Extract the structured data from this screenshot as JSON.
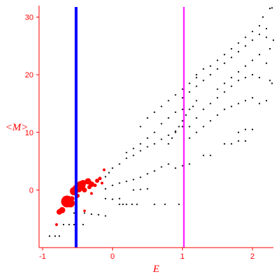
{
  "chart_data": {
    "type": "scatter",
    "title": "",
    "xlabel": "E",
    "ylabel": "<M>",
    "xlim": [
      -1.05,
      2.3
    ],
    "ylim": [
      -10,
      32
    ],
    "xticks": [
      -1,
      0,
      1,
      2
    ],
    "yticks": [
      0,
      10,
      20,
      30
    ],
    "axis_color": "#ff0000",
    "grid": false,
    "reference_lines": [
      {
        "name": "",
        "x": -0.52,
        "color": "#0000ff",
        "thickness": "thick"
      },
      {
        "name": "",
        "x": 1.02,
        "color": "#ff00ff",
        "thickness": "thin"
      }
    ],
    "series": [
      {
        "name": "",
        "color": "#000000",
        "marker": "small-dot",
        "points": [
          [
            -0.9,
            -8
          ],
          [
            -0.82,
            -8
          ],
          [
            -0.76,
            -8
          ],
          [
            -0.7,
            -6
          ],
          [
            -0.62,
            -6
          ],
          [
            -0.55,
            -6
          ],
          [
            -0.42,
            -6
          ],
          [
            -0.55,
            -4
          ],
          [
            -0.4,
            -4
          ],
          [
            -0.3,
            -4.2
          ],
          [
            -0.2,
            -4.3
          ],
          [
            -0.1,
            -4.5
          ],
          [
            -0.1,
            -1.5
          ],
          [
            0.0,
            -1.6
          ],
          [
            0.1,
            -1.5
          ],
          [
            0.1,
            -2.5
          ],
          [
            0.15,
            -2.5
          ],
          [
            0.2,
            -2.5
          ],
          [
            0.28,
            -2.5
          ],
          [
            0.35,
            -2.5
          ],
          [
            0.3,
            0
          ],
          [
            0.4,
            0.1
          ],
          [
            0.5,
            0.2
          ],
          [
            0.6,
            -2.5
          ],
          [
            0.75,
            -2.5
          ],
          [
            0.95,
            -2.5
          ],
          [
            -0.1,
            0.2
          ],
          [
            0.0,
            0.8
          ],
          [
            0.1,
            1.2
          ],
          [
            0.2,
            1.5
          ],
          [
            0.3,
            1.8
          ],
          [
            0.4,
            2.2
          ],
          [
            0.5,
            2.8
          ],
          [
            0.6,
            3.3
          ],
          [
            0.7,
            4.0
          ],
          [
            0.8,
            4.5
          ],
          [
            0.9,
            3.8
          ],
          [
            1.0,
            4.2
          ],
          [
            1.1,
            4.5
          ],
          [
            -0.1,
            2.3
          ],
          [
            -0.05,
            3.0
          ],
          [
            0.0,
            3.8
          ],
          [
            0.1,
            4.5
          ],
          [
            0.2,
            5.5
          ],
          [
            0.3,
            6.0
          ],
          [
            0.4,
            6.8
          ],
          [
            0.5,
            7.5
          ],
          [
            0.6,
            8.0
          ],
          [
            0.7,
            8.8
          ],
          [
            0.8,
            9.5
          ],
          [
            0.9,
            10.2
          ],
          [
            1.0,
            11.0
          ],
          [
            0.2,
            6.5
          ],
          [
            0.3,
            7.2
          ],
          [
            0.4,
            8.0
          ],
          [
            0.5,
            9.0
          ],
          [
            0.6,
            10.0
          ],
          [
            0.7,
            11.5
          ],
          [
            0.8,
            12.5
          ],
          [
            0.9,
            13.5
          ],
          [
            1.0,
            14.0
          ],
          [
            0.4,
            11.0
          ],
          [
            0.5,
            12.5
          ],
          [
            0.6,
            13.5
          ],
          [
            0.7,
            14.5
          ],
          [
            0.8,
            15.5
          ],
          [
            0.9,
            16.5
          ],
          [
            1.0,
            17.5
          ],
          [
            1.1,
            18.5
          ],
          [
            1.2,
            19.5
          ],
          [
            0.8,
            8.0
          ],
          [
            0.85,
            9.0
          ],
          [
            0.9,
            10.0
          ],
          [
            0.95,
            11.0
          ],
          [
            1.0,
            12.0
          ],
          [
            1.05,
            13.0
          ],
          [
            1.1,
            14.0
          ],
          [
            1.15,
            14.5
          ],
          [
            1.2,
            15.5
          ],
          [
            1.1,
            9.0
          ],
          [
            1.2,
            10.0
          ],
          [
            1.3,
            11.0
          ],
          [
            1.4,
            12.0
          ],
          [
            1.5,
            13.0
          ],
          [
            1.6,
            14.0
          ],
          [
            1.7,
            14.5
          ],
          [
            1.8,
            15.0
          ],
          [
            1.9,
            15.5
          ],
          [
            2.0,
            16.0
          ],
          [
            1.1,
            11.0
          ],
          [
            1.2,
            12.5
          ],
          [
            1.3,
            14.0
          ],
          [
            1.4,
            15.0
          ],
          [
            1.5,
            16.0
          ],
          [
            1.6,
            17.0
          ],
          [
            1.7,
            18.0
          ],
          [
            1.8,
            19.0
          ],
          [
            1.9,
            19.5
          ],
          [
            2.0,
            20.0
          ],
          [
            2.1,
            19.5
          ],
          [
            1.0,
            16.0
          ],
          [
            1.1,
            17.0
          ],
          [
            1.2,
            18.0
          ],
          [
            1.3,
            19.0
          ],
          [
            1.4,
            20.0
          ],
          [
            1.5,
            21.0
          ],
          [
            1.6,
            22.0
          ],
          [
            1.7,
            23.0
          ],
          [
            1.8,
            24.0
          ],
          [
            1.9,
            25.0
          ],
          [
            2.0,
            26.0
          ],
          [
            2.1,
            27.0
          ],
          [
            2.2,
            28.0
          ],
          [
            1.2,
            20.0
          ],
          [
            1.3,
            21.0
          ],
          [
            1.4,
            21.5
          ],
          [
            1.5,
            22.5
          ],
          [
            1.6,
            23.5
          ],
          [
            1.7,
            24.5
          ],
          [
            1.8,
            25.5
          ],
          [
            1.9,
            26.5
          ],
          [
            2.0,
            27.5
          ],
          [
            2.1,
            28.5
          ],
          [
            2.15,
            30.0
          ],
          [
            2.25,
            31.5
          ],
          [
            2.28,
            31.6
          ],
          [
            1.5,
            17.5
          ],
          [
            1.6,
            18.5
          ],
          [
            1.7,
            19.5
          ],
          [
            1.8,
            20.5
          ],
          [
            1.9,
            21.5
          ],
          [
            2.0,
            22.5
          ],
          [
            2.1,
            23.5
          ],
          [
            2.2,
            22.0
          ],
          [
            2.25,
            19.0
          ],
          [
            2.28,
            18.5
          ],
          [
            1.8,
            10.0
          ],
          [
            1.9,
            10.5
          ],
          [
            2.0,
            10.5
          ],
          [
            2.1,
            15.0
          ],
          [
            2.2,
            15.5
          ],
          [
            1.3,
            6.0
          ],
          [
            1.4,
            6.0
          ],
          [
            1.6,
            8.0
          ],
          [
            1.7,
            8.0
          ],
          [
            1.8,
            8.5
          ],
          [
            1.9,
            8.5
          ],
          [
            2.25,
            24.5
          ],
          [
            2.2,
            26.5
          ],
          [
            2.3,
            26.0
          ]
        ]
      },
      {
        "name": "",
        "color": "#ff0000",
        "marker": "dot",
        "points": [
          {
            "x": -0.65,
            "y": -2.0,
            "size": 8.5
          },
          {
            "x": -0.72,
            "y": -3.5,
            "size": 4.5
          },
          {
            "x": -0.76,
            "y": -3.8,
            "size": 4.0
          },
          {
            "x": -0.6,
            "y": -2.3,
            "size": 6.0
          },
          {
            "x": -0.55,
            "y": -0.2,
            "size": 6.0
          },
          {
            "x": -0.52,
            "y": 0.3,
            "size": 5.0
          },
          {
            "x": -0.45,
            "y": 0.8,
            "size": 6.5
          },
          {
            "x": -0.48,
            "y": 0.2,
            "size": 5.0
          },
          {
            "x": -0.42,
            "y": 1.2,
            "size": 4.5
          },
          {
            "x": -0.4,
            "y": 0.0,
            "size": 3.5
          },
          {
            "x": -0.35,
            "y": 1.5,
            "size": 4.5
          },
          {
            "x": -0.3,
            "y": 1.0,
            "size": 4.0
          },
          {
            "x": -0.33,
            "y": 0.5,
            "size": 3.0
          },
          {
            "x": -0.25,
            "y": 0.8,
            "size": 2.5
          },
          {
            "x": -0.22,
            "y": 1.6,
            "size": 3.0
          },
          {
            "x": -0.18,
            "y": 2.0,
            "size": 2.5
          },
          {
            "x": -0.15,
            "y": 1.2,
            "size": 2.0
          },
          {
            "x": -0.12,
            "y": 3.5,
            "size": 2.0
          },
          {
            "x": -0.5,
            "y": -1.0,
            "size": 3.0
          },
          {
            "x": -0.58,
            "y": -1.5,
            "size": 3.5
          },
          {
            "x": -0.68,
            "y": -1.8,
            "size": 4.5
          },
          {
            "x": -0.8,
            "y": -6.0,
            "size": 2.0
          },
          {
            "x": -0.4,
            "y": -3.6,
            "size": 1.8
          },
          {
            "x": -0.3,
            "y": -0.6,
            "size": 2.0
          }
        ]
      }
    ]
  }
}
